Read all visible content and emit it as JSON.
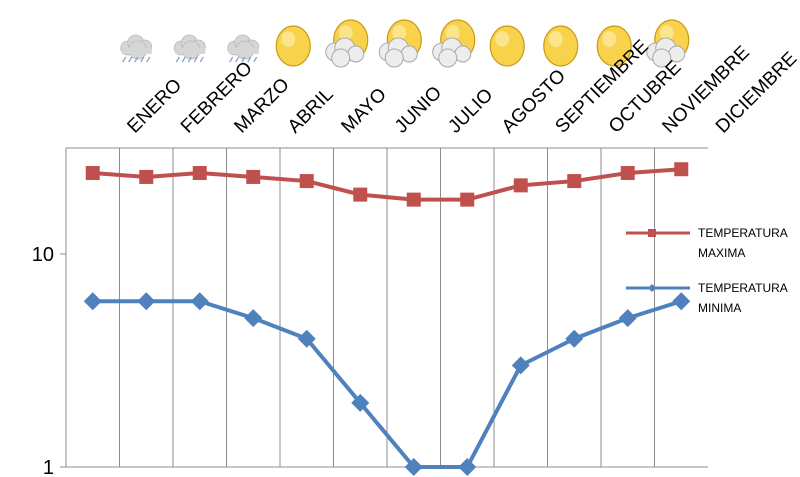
{
  "chart_data": {
    "type": "line",
    "categories": [
      "ENERO",
      "FEBRERO",
      "MARZO",
      "ABRIL",
      "MAYO",
      "JUNIO",
      "JULIO",
      "AGOSTO",
      "SEPTIEMBRE",
      "OCTUBRE",
      "NOVIEMBRE",
      "DICIEMBRE"
    ],
    "y_scale": "log",
    "ylim": [
      1,
      30
    ],
    "y_ticks": [
      {
        "value": 1,
        "label": "1"
      },
      {
        "value": 10,
        "label": "10"
      }
    ],
    "grid": "vertical",
    "x_axis_position": "top",
    "legend_position": "right",
    "series": [
      {
        "name": "TEMPERATURA MAXIMA",
        "legend_lines": [
          "TEMPERATURA",
          "MAXIMA"
        ],
        "color": "#c0504d",
        "marker": "square",
        "values": [
          24,
          23,
          24,
          23,
          22,
          19,
          18,
          18,
          21,
          22,
          24,
          25
        ]
      },
      {
        "name": "TEMPERATURA MINIMA",
        "legend_lines": [
          "TEMPERATURA",
          "MINIMA"
        ],
        "color": "#4f81bd",
        "marker": "diamond",
        "values": [
          6,
          6,
          6,
          5,
          4,
          2,
          1,
          1,
          3,
          4,
          5,
          6
        ]
      }
    ],
    "weather_icons": [
      "rain-cloud-icon",
      "rain-cloud-icon",
      "rain-cloud-icon",
      "sun-icon",
      "sun-behind-cloud-icon",
      "sun-behind-cloud-icon",
      "sun-behind-cloud-icon",
      "sun-icon",
      "sun-icon",
      "sun-icon",
      "sun-behind-cloud-icon",
      "none"
    ]
  }
}
